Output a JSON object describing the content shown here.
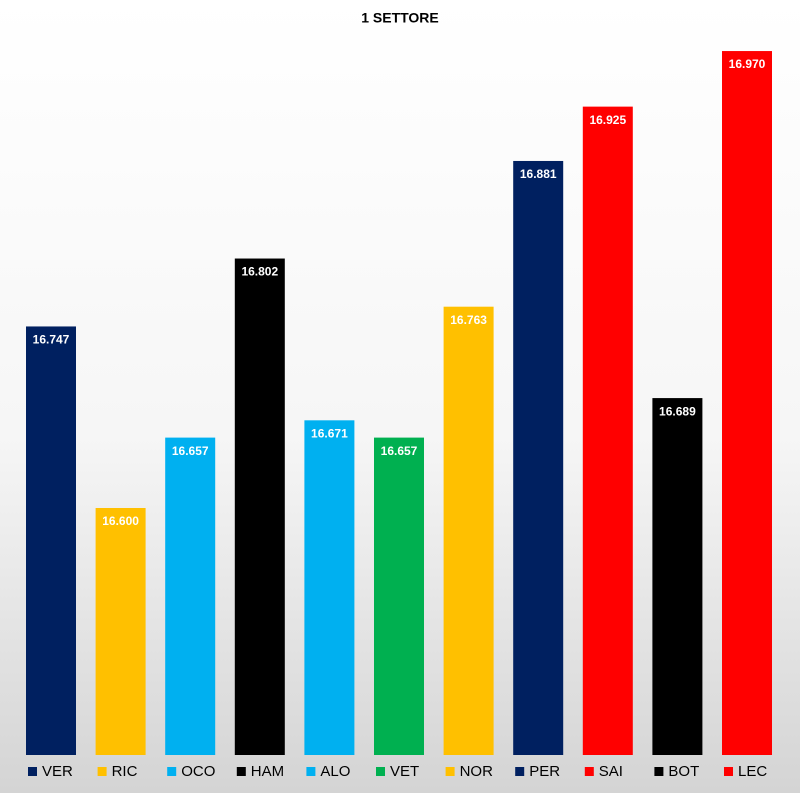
{
  "chart_data": {
    "type": "bar",
    "title": "1 SETTORE",
    "categories": [
      "VER",
      "RIC",
      "OCO",
      "HAM",
      "ALO",
      "VET",
      "NOR",
      "PER",
      "SAI",
      "BOT",
      "LEC"
    ],
    "values": [
      16.747,
      16.6,
      16.657,
      16.802,
      16.671,
      16.657,
      16.763,
      16.881,
      16.925,
      16.689,
      16.97
    ],
    "value_labels": [
      "16.747",
      "16.600",
      "16.657",
      "16.802",
      "16.671",
      "16.657",
      "16.763",
      "16.881",
      "16.925",
      "16.689",
      "16.970"
    ],
    "colors": [
      "#002060",
      "#ffc000",
      "#00b0f0",
      "#000000",
      "#00b0f0",
      "#00b050",
      "#ffc000",
      "#002060",
      "#ff0000",
      "#000000",
      "#ff0000"
    ],
    "ylim": [
      16.4,
      17.0
    ]
  }
}
